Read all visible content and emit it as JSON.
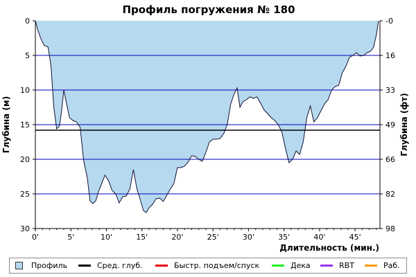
{
  "chart_data": {
    "type": "area",
    "title": "Профиль погружения № 180",
    "xlabel": "Длительность (мин.)",
    "ylabel_left": "Глубина (м)",
    "ylabel_right": "Глубина (фт)",
    "xlim": [
      0,
      48.5
    ],
    "ylim": [
      0,
      30
    ],
    "y_inverted": true,
    "x_ticks": [
      "0'",
      "5'",
      "10'",
      "15'",
      "20'",
      "25'",
      "30'",
      "35'",
      "40'",
      "45'"
    ],
    "y_ticks_left": [
      "0",
      "5",
      "10",
      "15",
      "20",
      "25",
      "30"
    ],
    "y_ticks_right": [
      "0",
      "16",
      "33",
      "49",
      "66",
      "82",
      "98"
    ],
    "average_depth": 15.8,
    "series": [
      {
        "name": "Профиль",
        "x": [
          0,
          0.3,
          0.7,
          1.2,
          1.8,
          2.2,
          2.6,
          3.0,
          3.4,
          3.7,
          4.0,
          4.4,
          4.8,
          5.3,
          5.8,
          6.3,
          6.8,
          7.3,
          7.7,
          8.1,
          8.5,
          8.9,
          9.3,
          9.8,
          10.3,
          10.8,
          11.3,
          11.8,
          12.3,
          12.8,
          13.3,
          13.8,
          14.3,
          14.7,
          15.2,
          15.6,
          16.0,
          16.5,
          17.0,
          17.5,
          18.0,
          18.5,
          19.0,
          19.5,
          20.0,
          20.5,
          21.0,
          21.5,
          22.0,
          22.5,
          23.0,
          23.5,
          24.0,
          24.5,
          25.0,
          25.5,
          26.0,
          26.5,
          27.0,
          27.5,
          28.0,
          28.4,
          28.8,
          29.2,
          29.7,
          30.2,
          30.7,
          31.2,
          31.7,
          32.2,
          32.7,
          33.2,
          33.7,
          34.2,
          34.7,
          35.2,
          35.7,
          36.2,
          36.7,
          37.2,
          37.7,
          38.2,
          38.7,
          39.2,
          39.7,
          40.2,
          40.7,
          41.2,
          41.7,
          42.2,
          42.7,
          43.2,
          43.7,
          44.2,
          44.7,
          45.2,
          45.7,
          46.2,
          46.7,
          47.2,
          47.6,
          48.0,
          48.3
        ],
        "depth": [
          0.0,
          1.2,
          2.4,
          3.5,
          3.8,
          6.5,
          12.5,
          15.6,
          15.2,
          13.0,
          10.0,
          12.0,
          14.0,
          14.4,
          14.6,
          15.4,
          20.2,
          22.6,
          26.0,
          26.4,
          26.0,
          24.6,
          23.6,
          22.3,
          23.1,
          24.5,
          25.0,
          26.3,
          25.4,
          25.3,
          24.3,
          21.5,
          24.3,
          25.6,
          27.4,
          27.7,
          27.0,
          26.5,
          25.7,
          25.6,
          26.1,
          25.2,
          24.3,
          23.5,
          21.2,
          21.2,
          21.0,
          20.4,
          19.5,
          19.6,
          20.0,
          20.3,
          19.0,
          17.5,
          17.1,
          17.1,
          17.0,
          16.3,
          15.0,
          12.0,
          10.5,
          9.7,
          12.5,
          11.7,
          11.4,
          11.0,
          11.2,
          11.0,
          11.9,
          12.9,
          13.4,
          14.0,
          14.4,
          15.0,
          16.1,
          18.4,
          20.5,
          20.0,
          18.8,
          19.3,
          17.5,
          14.0,
          12.3,
          14.6,
          14.0,
          13.0,
          12.0,
          11.4,
          10.0,
          9.5,
          9.3,
          7.5,
          6.6,
          5.3,
          5.0,
          4.6,
          5.1,
          5.0,
          4.6,
          4.4,
          3.8,
          2.0,
          0.0
        ]
      }
    ]
  },
  "legend": [
    {
      "label": "Профиль",
      "color": "#b6d9ef",
      "kind": "box"
    },
    {
      "label": "Сред. глуб.",
      "color": "#000000",
      "kind": "line"
    },
    {
      "label": "Быстр. подъем/спуск",
      "color": "#e8000f",
      "kind": "line"
    },
    {
      "label": "Дека",
      "color": "#22ee22",
      "kind": "line"
    },
    {
      "label": "RBT",
      "color": "#9933ee",
      "kind": "line"
    },
    {
      "label": "Раб.",
      "color": "#ff9900",
      "kind": "line"
    }
  ],
  "colors": {
    "area_fill": "#b6d9ef",
    "profile_line": "#111133",
    "grid": "#0000bb",
    "avg_line": "#000000"
  }
}
